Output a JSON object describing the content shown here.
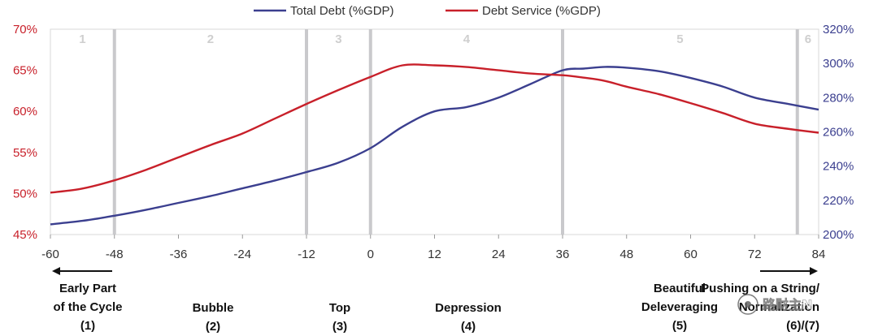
{
  "chart_data": {
    "type": "line",
    "x": [
      -60,
      -54,
      -48,
      -42,
      -36,
      -30,
      -24,
      -18,
      -12,
      -6,
      0,
      6,
      12,
      18,
      24,
      30,
      36,
      40,
      44,
      48,
      54,
      60,
      66,
      72,
      78,
      84
    ],
    "x_ticks": [
      "-60",
      "-48",
      "-36",
      "-24",
      "-12",
      "0",
      "12",
      "24",
      "36",
      "48",
      "60",
      "72",
      "84"
    ],
    "xlim": [
      -60,
      84
    ],
    "left_axis": {
      "ylim": [
        45,
        70
      ],
      "ticks": [
        "45%",
        "50%",
        "55%",
        "60%",
        "65%",
        "70%"
      ],
      "color": "#c8202a"
    },
    "right_axis": {
      "ylim": [
        200,
        320
      ],
      "ticks": [
        "200%",
        "220%",
        "240%",
        "260%",
        "280%",
        "300%",
        "320%"
      ],
      "color": "#3b3f8f"
    },
    "series": [
      {
        "name": "Total Debt (%GDP)",
        "axis": "right",
        "color": "#3b3f8f",
        "values": [
          206,
          208,
          211,
          214.5,
          218.5,
          222.5,
          227,
          231.5,
          236.5,
          242,
          250.5,
          263,
          272,
          274.5,
          280,
          288,
          296,
          297,
          298,
          297.5,
          295.5,
          291.5,
          286.5,
          280,
          276.5,
          273
        ]
      },
      {
        "name": "Debt Service (%GDP)",
        "axis": "left",
        "color": "#c8202a",
        "values": [
          50.1,
          50.6,
          51.6,
          52.9,
          54.4,
          55.9,
          57.3,
          59.1,
          60.9,
          62.6,
          64.2,
          65.6,
          65.6,
          65.4,
          65,
          64.6,
          64.4,
          64.1,
          63.7,
          63,
          62.1,
          61,
          59.8,
          58.5,
          57.9,
          57.4
        ]
      }
    ],
    "phases": [
      {
        "label": "1",
        "start": -60,
        "end": -48
      },
      {
        "label": "2",
        "start": -48,
        "end": -12
      },
      {
        "label": "3",
        "start": -12,
        "end": 0
      },
      {
        "label": "4",
        "start": 0,
        "end": 36
      },
      {
        "label": "5",
        "start": 36,
        "end": 80
      },
      {
        "label": "6",
        "start": 80,
        "end": 84
      }
    ],
    "divider_x": [
      -48,
      -12,
      0,
      36,
      80
    ],
    "legend_position": "top",
    "grid": false
  },
  "stages": [
    {
      "name": "stage-early",
      "lines": [
        "Early Part",
        "of the Cycle",
        "(1)"
      ]
    },
    {
      "name": "stage-bubble",
      "lines": [
        "Bubble",
        "(2)"
      ]
    },
    {
      "name": "stage-top",
      "lines": [
        "Top",
        "(3)"
      ]
    },
    {
      "name": "stage-depression",
      "lines": [
        "Depression",
        "(4)"
      ]
    },
    {
      "name": "stage-beautiful-deleveraging",
      "lines": [
        "Beautiful",
        "Deleveraging",
        "(5)"
      ]
    },
    {
      "name": "stage-pushing-on-string",
      "lines": [
        "Pushing on a String/",
        "Normalization",
        "(6)/(7)"
      ]
    }
  ],
  "watermark": "路财主N"
}
